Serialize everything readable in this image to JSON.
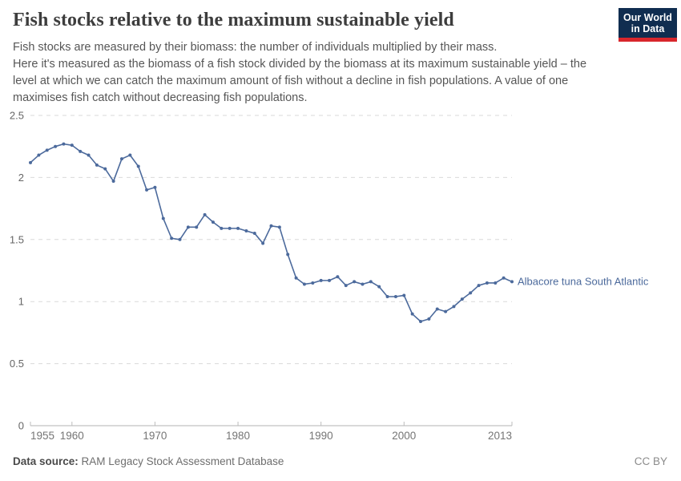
{
  "header": {
    "title": "Fish stocks relative to the maximum sustainable yield",
    "subtitle": "Fish stocks are measured by their biomass: the number of individuals multiplied by their mass.\nHere it's measured as the biomass of a fish stock divided by the biomass at its maximum sustainable yield – the level at which we can catch the maximum amount of fish without a decline in fish populations. A value of one maximises fish catch without decreasing fish populations.",
    "logo": {
      "line1": "Our World",
      "line2": "in Data",
      "bg_color": "#102d50",
      "accent_color": "#d8262c"
    }
  },
  "chart_data": {
    "type": "line",
    "title": "Fish stocks relative to the maximum sustainable yield",
    "xlabel": "",
    "ylabel": "",
    "xlim": [
      1955,
      2013
    ],
    "ylim": [
      0,
      2.5
    ],
    "yticks": [
      0,
      0.5,
      1,
      1.5,
      2,
      2.5
    ],
    "xticks": [
      1955,
      1960,
      1970,
      1980,
      1990,
      2000,
      2013
    ],
    "grid": "horizontal-dashed",
    "legend_position": "right-of-last-point",
    "series": [
      {
        "name": "Albacore tuna South Atlantic",
        "color": "#4c6a9c",
        "x": [
          1955,
          1956,
          1957,
          1958,
          1959,
          1960,
          1961,
          1962,
          1963,
          1964,
          1965,
          1966,
          1967,
          1968,
          1969,
          1970,
          1971,
          1972,
          1973,
          1974,
          1975,
          1976,
          1977,
          1978,
          1979,
          1980,
          1981,
          1982,
          1983,
          1984,
          1985,
          1986,
          1987,
          1988,
          1989,
          1990,
          1991,
          1992,
          1993,
          1994,
          1995,
          1996,
          1997,
          1998,
          1999,
          2000,
          2001,
          2002,
          2003,
          2004,
          2005,
          2006,
          2007,
          2008,
          2009,
          2010,
          2011,
          2012,
          2013
        ],
        "values": [
          2.12,
          2.18,
          2.22,
          2.25,
          2.27,
          2.26,
          2.21,
          2.18,
          2.1,
          2.07,
          1.97,
          2.15,
          2.18,
          2.09,
          1.9,
          1.92,
          1.67,
          1.51,
          1.5,
          1.6,
          1.6,
          1.7,
          1.64,
          1.59,
          1.59,
          1.59,
          1.57,
          1.55,
          1.47,
          1.61,
          1.6,
          1.38,
          1.19,
          1.14,
          1.15,
          1.17,
          1.17,
          1.2,
          1.13,
          1.16,
          1.14,
          1.16,
          1.12,
          1.04,
          1.04,
          1.05,
          0.9,
          0.84,
          0.86,
          0.94,
          0.92,
          0.96,
          1.02,
          1.07,
          1.13,
          1.15,
          1.15,
          1.19,
          1.16
        ]
      }
    ]
  },
  "footer": {
    "datasource_label": "Data source:",
    "datasource_value": "RAM Legacy Stock Assessment Database",
    "license": "CC BY"
  }
}
